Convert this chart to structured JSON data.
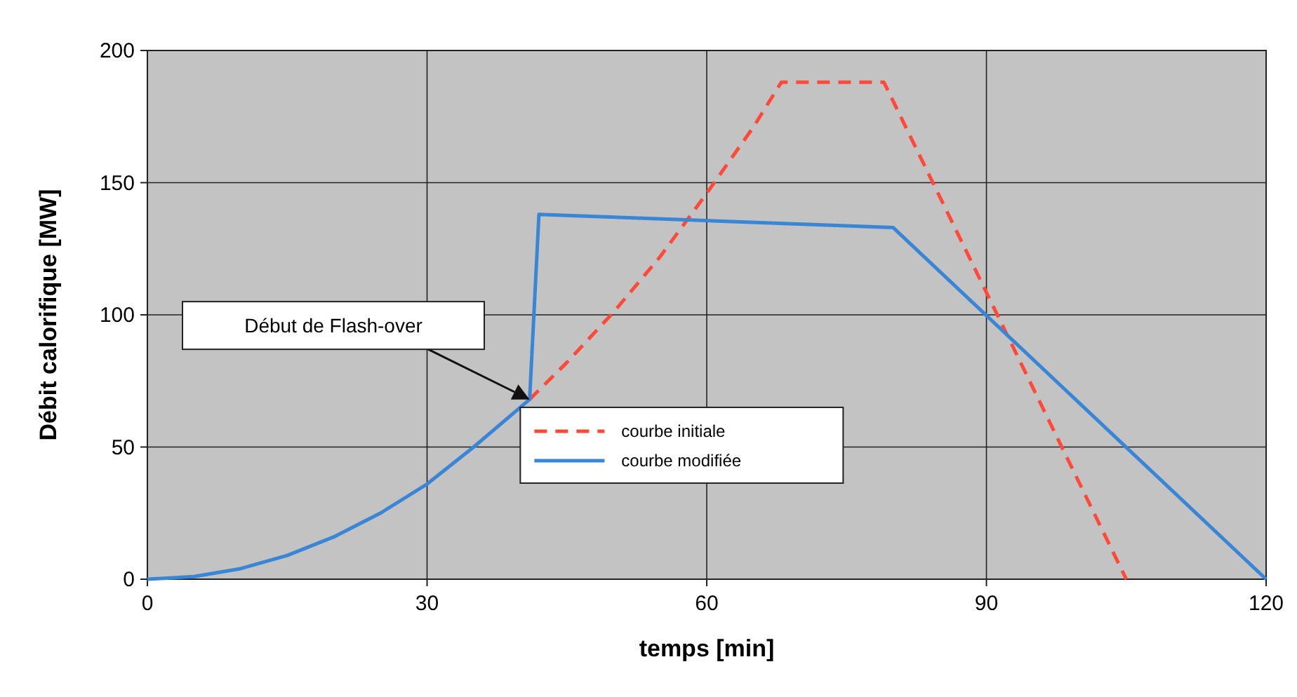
{
  "chart_data": {
    "type": "line",
    "xlabel": "temps [min]",
    "ylabel": "Débit calorifique [MW]",
    "xlim": [
      0,
      120
    ],
    "ylim": [
      0,
      200
    ],
    "xticks": [
      0,
      30,
      60,
      90,
      120
    ],
    "yticks": [
      0,
      50,
      100,
      150,
      200
    ],
    "grid": true,
    "legend": "bottom",
    "series": [
      {
        "name": "courbe initiale",
        "color": "#ff4a3a",
        "line_style": "dashed",
        "x": [
          41,
          45,
          50,
          55,
          60,
          65,
          68,
          79,
          105
        ],
        "values": [
          68,
          82,
          101,
          122,
          146,
          171,
          188,
          188,
          0
        ]
      },
      {
        "name": "courbe modifiée",
        "color": "#3a86d6",
        "line_style": "solid",
        "x": [
          0,
          5,
          10,
          15,
          20,
          25,
          30,
          35,
          41,
          42,
          80,
          120
        ],
        "values": [
          0,
          1,
          4,
          9,
          16,
          25,
          36,
          50,
          68,
          138,
          133,
          0
        ]
      }
    ],
    "annotations": [
      "Début de Flash-over"
    ]
  }
}
